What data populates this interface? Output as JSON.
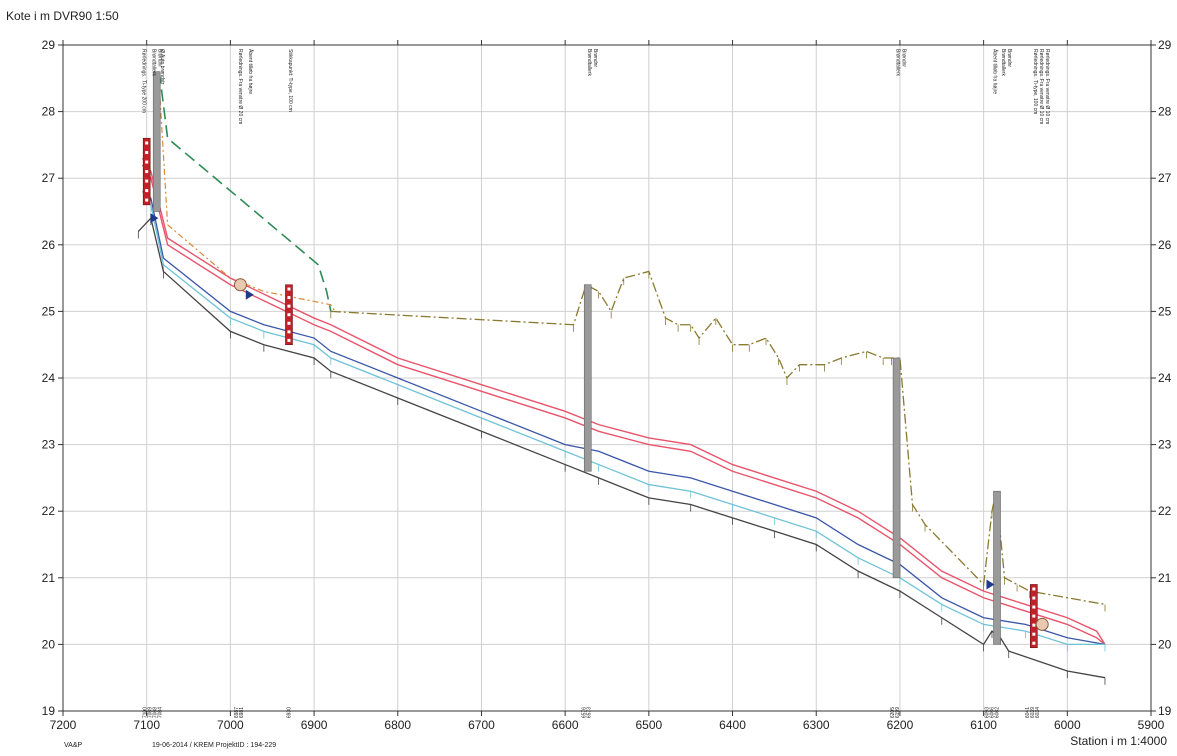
{
  "chart_data": {
    "type": "line",
    "title": "Kote i m DVR90 1:50",
    "xlabel": "Station i m 1:4000",
    "ylabel": "",
    "xlim": [
      7200,
      5900
    ],
    "ylim": [
      19,
      29
    ],
    "x_ticks": [
      7200,
      7100,
      7000,
      6900,
      6800,
      6700,
      6600,
      6500,
      6400,
      6300,
      6200,
      6100,
      6000,
      5900
    ],
    "y_ticks": [
      19,
      20,
      21,
      22,
      23,
      24,
      25,
      26,
      27,
      28,
      29
    ],
    "grid": true,
    "series": [
      {
        "style": "green-dash",
        "color": "#2e8b57",
        "x": [
          7085,
          7075,
          6980,
          6895,
          6885,
          6880
        ],
        "y": [
          28.6,
          27.6,
          26.6,
          25.7,
          25.3,
          25.0
        ]
      },
      {
        "style": "orange-dashdot",
        "color": "#d98a3a",
        "x": [
          7085,
          7075,
          7000,
          6960,
          6880,
          6875
        ],
        "y": [
          28.4,
          26.3,
          25.5,
          25.3,
          25.1,
          25.0
        ]
      },
      {
        "style": "terrain",
        "color": "#8a7a30",
        "x": [
          6880,
          6590,
          6575,
          6560,
          6545,
          6530,
          6500,
          6480,
          6465,
          6450,
          6440,
          6420,
          6400,
          6380,
          6360,
          6345,
          6335,
          6320,
          6290,
          6270,
          6240,
          6220,
          6210,
          6200,
          6185,
          6170,
          6100,
          6090,
          6085,
          6075,
          6060,
          6045,
          5955
        ],
        "y": [
          25.0,
          24.8,
          25.4,
          25.3,
          25.0,
          25.5,
          25.6,
          24.9,
          24.8,
          24.8,
          24.6,
          24.9,
          24.5,
          24.5,
          24.6,
          24.3,
          24.0,
          24.2,
          24.2,
          24.3,
          24.4,
          24.3,
          24.3,
          24.3,
          22.1,
          21.8,
          20.9,
          22.0,
          22.3,
          21.0,
          20.9,
          20.8,
          20.6
        ]
      },
      {
        "style": "red-upper",
        "color": "#e8546a",
        "x": [
          7105,
          7095,
          7085,
          7075,
          7000,
          6950,
          6900,
          6880,
          6800,
          6700,
          6600,
          6560,
          6500,
          6450,
          6400,
          6350,
          6300,
          6250,
          6200,
          6150,
          6100,
          6050,
          6000,
          5965,
          5955
        ],
        "y": [
          27.3,
          27.1,
          26.6,
          26.1,
          25.5,
          25.2,
          24.9,
          24.8,
          24.3,
          23.9,
          23.5,
          23.3,
          23.1,
          23.0,
          22.7,
          22.5,
          22.3,
          22.0,
          21.6,
          21.1,
          20.8,
          20.6,
          20.4,
          20.2,
          20.0
        ]
      },
      {
        "style": "red-lower",
        "color": "#e8546a",
        "x": [
          7105,
          7095,
          7085,
          7075,
          7000,
          6950,
          6900,
          6880,
          6800,
          6700,
          6600,
          6560,
          6500,
          6450,
          6400,
          6350,
          6300,
          6250,
          6200,
          6150,
          6100,
          6050,
          6000,
          5965,
          5955
        ],
        "y": [
          27.2,
          27.0,
          26.5,
          26.0,
          25.4,
          25.1,
          24.8,
          24.7,
          24.2,
          23.8,
          23.4,
          23.2,
          23.0,
          22.9,
          22.6,
          22.4,
          22.2,
          21.9,
          21.5,
          21.0,
          20.7,
          20.5,
          20.3,
          20.1,
          20.0
        ]
      },
      {
        "style": "blue",
        "color": "#3a56a8",
        "x": [
          7105,
          7095,
          7080,
          7000,
          6960,
          6900,
          6880,
          6800,
          6700,
          6600,
          6560,
          6500,
          6450,
          6400,
          6350,
          6300,
          6250,
          6200,
          6150,
          6100,
          6050,
          6000,
          5955
        ],
        "y": [
          26.8,
          26.7,
          25.8,
          25.0,
          24.8,
          24.6,
          24.4,
          24.0,
          23.5,
          23.0,
          22.9,
          22.6,
          22.5,
          22.3,
          22.1,
          21.9,
          21.5,
          21.2,
          20.7,
          20.4,
          20.3,
          20.1,
          20.0
        ]
      },
      {
        "style": "cyan",
        "color": "#6ec3d6",
        "x": [
          7095,
          7080,
          7000,
          6960,
          6900,
          6880,
          6800,
          6700,
          6600,
          6560,
          6500,
          6450,
          6400,
          6350,
          6300,
          6250,
          6200,
          6150,
          6100,
          6050,
          6000,
          5955
        ],
        "y": [
          26.6,
          25.7,
          24.9,
          24.7,
          24.5,
          24.3,
          23.9,
          23.4,
          22.9,
          22.7,
          22.4,
          22.3,
          22.1,
          21.9,
          21.7,
          21.3,
          21.0,
          20.6,
          20.3,
          20.2,
          20.0,
          20.0
        ]
      },
      {
        "style": "bottom-black",
        "color": "#444444",
        "x": [
          7110,
          7095,
          7080,
          7000,
          6960,
          6900,
          6880,
          6800,
          6700,
          6600,
          6560,
          6500,
          6450,
          6400,
          6350,
          6300,
          6250,
          6200,
          6150,
          6100,
          6090,
          6080,
          6070,
          6000,
          5955
        ],
        "y": [
          26.2,
          26.4,
          25.6,
          24.7,
          24.5,
          24.3,
          24.1,
          23.7,
          23.2,
          22.7,
          22.5,
          22.2,
          22.1,
          21.9,
          21.7,
          21.5,
          21.1,
          20.8,
          20.4,
          20.0,
          20.2,
          20.1,
          19.9,
          19.6,
          19.5
        ]
      }
    ],
    "wells": [
      {
        "x": 7088,
        "top": 28.6,
        "bottom": 26.5
      },
      {
        "x": 6573,
        "top": 25.4,
        "bottom": 22.6
      },
      {
        "x": 6204,
        "top": 24.3,
        "bottom": 21.0
      },
      {
        "x": 6084,
        "top": 22.3,
        "bottom": 20.0
      }
    ],
    "markers": [
      {
        "x": 7100,
        "top": 27.6,
        "bottom": 26.6
      },
      {
        "x": 6930,
        "top": 25.4,
        "bottom": 24.5
      },
      {
        "x": 6040,
        "top": 20.9,
        "bottom": 19.95
      }
    ],
    "circles": [
      {
        "x": 6988,
        "y": 25.4
      },
      {
        "x": 6030,
        "y": 20.3
      }
    ],
    "triangles": [
      {
        "x": 6978,
        "y": 25.25
      },
      {
        "x": 6093,
        "y": 20.9
      },
      {
        "x": 7092,
        "y": 26.4
      }
    ],
    "top_annotations": [
      {
        "x": 7105,
        "lines": [
          "Rørlednings.: Ti-type 200 cm"
        ]
      },
      {
        "x": 7093,
        "lines": [
          "Brøndtallerk",
          "Brøndnr"
        ]
      },
      {
        "x": 7083,
        "lines": [
          "Ø Auto brøndstr"
        ]
      },
      {
        "x": 6990,
        "lines": [
          "Rørlednings.:Fra venstre Ø 20 cm"
        ]
      },
      {
        "x": 6978,
        "lines": [
          "Åbent tilløb fra højre"
        ]
      },
      {
        "x": 6930,
        "lines": [
          "Stikkapunkt: Ti-type, 100 cm"
        ]
      },
      {
        "x": 6573,
        "lines": [
          "Brøndtallerk",
          "Brøndnr"
        ]
      },
      {
        "x": 6204,
        "lines": [
          "Brøndtallerk",
          "Brøndnr"
        ]
      },
      {
        "x": 6088,
        "lines": [
          "Åbent tilløb fra højre"
        ]
      },
      {
        "x": 6078,
        "lines": [
          "Brøndtallerk",
          "Brøndnr"
        ]
      },
      {
        "x": 6040,
        "lines": [
          "Rørlednings.: Ti-type, 100 cm",
          "Rørlednings.:Fra venstre Ø 10 cm",
          "Rørlednings.:Fra venstre Ø 10 cm"
        ]
      }
    ],
    "bottom_labels": [
      {
        "x": 7100,
        "lines": [
          "7100"
        ]
      },
      {
        "x": 7088,
        "lines": [
          "7089",
          "7088",
          "7084"
        ]
      },
      {
        "x": 6988,
        "lines": [
          "6987",
          "6981"
        ]
      },
      {
        "x": 6928,
        "lines": [
          "6930"
        ]
      },
      {
        "x": 6573,
        "lines": [
          "6576",
          "6573"
        ]
      },
      {
        "x": 6204,
        "lines": [
          "6205",
          "6199"
        ]
      },
      {
        "x": 6088,
        "lines": [
          "6093",
          "6086",
          "6082"
        ]
      },
      {
        "x": 6040,
        "lines": [
          "6041",
          "6039",
          "6034"
        ]
      }
    ]
  },
  "footer": {
    "left_code": "VA&P",
    "date_info": "19-06-2014 / KREM  ProjektID : 194-229"
  }
}
